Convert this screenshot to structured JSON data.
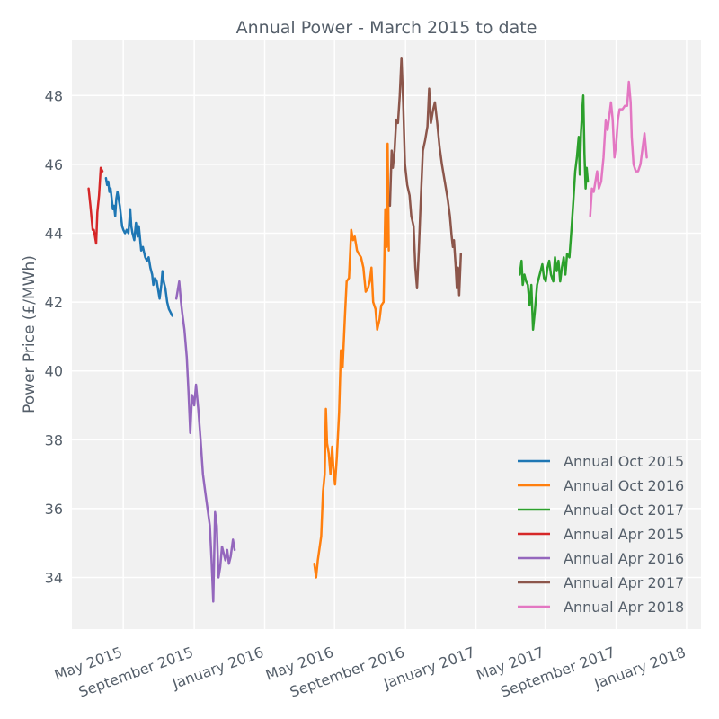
{
  "chart_data": {
    "type": "line",
    "title": "Annual Power - March 2015 to date",
    "xlabel": "",
    "ylabel": "Power Price (£/MWh)",
    "ylim": [
      32.5,
      49.6
    ],
    "xlim": [
      "2015-02-01",
      "2018-01-26"
    ],
    "yticks": [
      34,
      36,
      38,
      40,
      42,
      44,
      46,
      48
    ],
    "xticks": [
      {
        "date": "2015-05-01",
        "label": "May 2015"
      },
      {
        "date": "2015-09-01",
        "label": "September 2015"
      },
      {
        "date": "2016-01-01",
        "label": "January 2016"
      },
      {
        "date": "2016-05-01",
        "label": "May 2016"
      },
      {
        "date": "2016-09-01",
        "label": "September 2016"
      },
      {
        "date": "2017-01-01",
        "label": "January 2017"
      },
      {
        "date": "2017-05-01",
        "label": "May 2017"
      },
      {
        "date": "2017-09-01",
        "label": "September 2017"
      },
      {
        "date": "2018-01-01",
        "label": "January 2018"
      }
    ],
    "grid": true,
    "legend_position": "lower-right",
    "series": [
      {
        "name": "Annual Oct 2015",
        "color": "#1f77b4",
        "points": [
          [
            "2015-04-01",
            45.6
          ],
          [
            "2015-04-03",
            45.4
          ],
          [
            "2015-04-05",
            45.5
          ],
          [
            "2015-04-07",
            45.2
          ],
          [
            "2015-04-09",
            45.3
          ],
          [
            "2015-04-11",
            45.0
          ],
          [
            "2015-04-13",
            44.7
          ],
          [
            "2015-04-15",
            44.8
          ],
          [
            "2015-04-17",
            44.5
          ],
          [
            "2015-04-19",
            45.0
          ],
          [
            "2015-04-21",
            45.2
          ],
          [
            "2015-04-23",
            45.0
          ],
          [
            "2015-04-25",
            44.8
          ],
          [
            "2015-04-27",
            44.5
          ],
          [
            "2015-04-29",
            44.2
          ],
          [
            "2015-05-01",
            44.1
          ],
          [
            "2015-05-04",
            44.0
          ],
          [
            "2015-05-07",
            44.1
          ],
          [
            "2015-05-10",
            44.0
          ],
          [
            "2015-05-13",
            44.7
          ],
          [
            "2015-05-15",
            44.2
          ],
          [
            "2015-05-17",
            44.0
          ],
          [
            "2015-05-20",
            43.8
          ],
          [
            "2015-05-23",
            44.3
          ],
          [
            "2015-05-26",
            43.9
          ],
          [
            "2015-05-28",
            44.2
          ],
          [
            "2015-06-01",
            43.5
          ],
          [
            "2015-06-04",
            43.6
          ],
          [
            "2015-06-08",
            43.3
          ],
          [
            "2015-06-11",
            43.2
          ],
          [
            "2015-06-14",
            43.3
          ],
          [
            "2015-06-17",
            43.0
          ],
          [
            "2015-06-20",
            42.8
          ],
          [
            "2015-06-22",
            42.5
          ],
          [
            "2015-06-25",
            42.7
          ],
          [
            "2015-06-28",
            42.6
          ],
          [
            "2015-07-01",
            42.3
          ],
          [
            "2015-07-03",
            42.1
          ],
          [
            "2015-07-06",
            42.5
          ],
          [
            "2015-07-08",
            42.9
          ],
          [
            "2015-07-10",
            42.6
          ],
          [
            "2015-07-13",
            42.4
          ],
          [
            "2015-07-16",
            42.0
          ],
          [
            "2015-07-19",
            41.8
          ],
          [
            "2015-07-22",
            41.7
          ],
          [
            "2015-07-25",
            41.6
          ]
        ]
      },
      {
        "name": "Annual Oct 2016",
        "color": "#ff7f0e",
        "points": [
          [
            "2016-03-27",
            34.4
          ],
          [
            "2016-03-30",
            34.0
          ],
          [
            "2016-04-02",
            34.5
          ],
          [
            "2016-04-08",
            35.2
          ],
          [
            "2016-04-11",
            36.5
          ],
          [
            "2016-04-14",
            37.0
          ],
          [
            "2016-04-16",
            38.9
          ],
          [
            "2016-04-18",
            37.9
          ],
          [
            "2016-04-21",
            37.6
          ],
          [
            "2016-04-24",
            37.0
          ],
          [
            "2016-04-27",
            37.8
          ],
          [
            "2016-04-29",
            37.2
          ],
          [
            "2016-05-02",
            36.7
          ],
          [
            "2016-05-05",
            37.5
          ],
          [
            "2016-05-09",
            38.8
          ],
          [
            "2016-05-12",
            40.6
          ],
          [
            "2016-05-15",
            40.1
          ],
          [
            "2016-05-19",
            41.6
          ],
          [
            "2016-05-22",
            42.6
          ],
          [
            "2016-05-26",
            42.7
          ],
          [
            "2016-05-30",
            44.1
          ],
          [
            "2016-06-02",
            43.8
          ],
          [
            "2016-06-05",
            43.9
          ],
          [
            "2016-06-09",
            43.5
          ],
          [
            "2016-06-12",
            43.4
          ],
          [
            "2016-06-16",
            43.3
          ],
          [
            "2016-06-20",
            43.0
          ],
          [
            "2016-06-24",
            42.3
          ],
          [
            "2016-06-28",
            42.4
          ],
          [
            "2016-07-01",
            42.6
          ],
          [
            "2016-07-04",
            43.0
          ],
          [
            "2016-07-07",
            42.0
          ],
          [
            "2016-07-11",
            41.8
          ],
          [
            "2016-07-14",
            41.2
          ],
          [
            "2016-07-18",
            41.5
          ],
          [
            "2016-07-21",
            41.9
          ],
          [
            "2016-07-25",
            42.0
          ],
          [
            "2016-07-28",
            44.7
          ],
          [
            "2016-07-30",
            43.6
          ],
          [
            "2016-08-01",
            46.6
          ],
          [
            "2016-08-03",
            43.5
          ]
        ]
      },
      {
        "name": "Annual Oct 2017",
        "color": "#2ca02c",
        "points": [
          [
            "2017-03-18",
            42.8
          ],
          [
            "2017-03-21",
            43.2
          ],
          [
            "2017-03-23",
            42.5
          ],
          [
            "2017-03-26",
            42.8
          ],
          [
            "2017-03-29",
            42.6
          ],
          [
            "2017-04-01",
            42.5
          ],
          [
            "2017-04-04",
            41.9
          ],
          [
            "2017-04-07",
            42.5
          ],
          [
            "2017-04-10",
            41.2
          ],
          [
            "2017-04-13",
            41.7
          ],
          [
            "2017-04-17",
            42.5
          ],
          [
            "2017-04-20",
            42.7
          ],
          [
            "2017-04-23",
            42.9
          ],
          [
            "2017-04-26",
            43.1
          ],
          [
            "2017-04-29",
            42.7
          ],
          [
            "2017-05-02",
            42.6
          ],
          [
            "2017-05-05",
            43.0
          ],
          [
            "2017-05-08",
            43.2
          ],
          [
            "2017-05-11",
            42.8
          ],
          [
            "2017-05-15",
            42.6
          ],
          [
            "2017-05-18",
            43.3
          ],
          [
            "2017-05-21",
            42.9
          ],
          [
            "2017-05-24",
            43.2
          ],
          [
            "2017-05-27",
            42.6
          ],
          [
            "2017-05-30",
            43.0
          ],
          [
            "2017-06-02",
            43.3
          ],
          [
            "2017-06-05",
            42.8
          ],
          [
            "2017-06-08",
            43.4
          ],
          [
            "2017-06-12",
            43.3
          ],
          [
            "2017-06-16",
            44.2
          ],
          [
            "2017-06-19",
            45.0
          ],
          [
            "2017-06-22",
            45.8
          ],
          [
            "2017-06-25",
            46.2
          ],
          [
            "2017-06-28",
            46.8
          ],
          [
            "2017-06-30",
            45.7
          ],
          [
            "2017-07-02",
            46.9
          ],
          [
            "2017-07-04",
            47.5
          ],
          [
            "2017-07-06",
            48.0
          ],
          [
            "2017-07-08",
            46.3
          ],
          [
            "2017-07-10",
            45.3
          ],
          [
            "2017-07-12",
            45.9
          ],
          [
            "2017-07-14",
            45.5
          ]
        ]
      },
      {
        "name": "Annual Apr 2015",
        "color": "#d62728",
        "points": [
          [
            "2015-03-02",
            45.3
          ],
          [
            "2015-03-05",
            44.8
          ],
          [
            "2015-03-09",
            44.1
          ],
          [
            "2015-03-11",
            44.1
          ],
          [
            "2015-03-13",
            43.9
          ],
          [
            "2015-03-15",
            43.7
          ],
          [
            "2015-03-17",
            44.6
          ],
          [
            "2015-03-20",
            45.1
          ],
          [
            "2015-03-23",
            45.9
          ],
          [
            "2015-03-26",
            45.8
          ]
        ]
      },
      {
        "name": "Annual Apr 2016",
        "color": "#9467bd",
        "points": [
          [
            "2015-08-01",
            42.1
          ],
          [
            "2015-08-03",
            42.3
          ],
          [
            "2015-08-06",
            42.6
          ],
          [
            "2015-08-09",
            42.0
          ],
          [
            "2015-08-11",
            41.7
          ],
          [
            "2015-08-15",
            41.2
          ],
          [
            "2015-08-19",
            40.4
          ],
          [
            "2015-08-22",
            39.4
          ],
          [
            "2015-08-25",
            38.2
          ],
          [
            "2015-08-28",
            39.3
          ],
          [
            "2015-08-30",
            39.2
          ],
          [
            "2015-09-01",
            39.0
          ],
          [
            "2015-09-04",
            39.6
          ],
          [
            "2015-09-08",
            38.9
          ],
          [
            "2015-09-12",
            38.0
          ],
          [
            "2015-09-16",
            37.0
          ],
          [
            "2015-09-20",
            36.5
          ],
          [
            "2015-09-24",
            36.0
          ],
          [
            "2015-09-28",
            35.5
          ],
          [
            "2015-10-01",
            34.5
          ],
          [
            "2015-10-04",
            33.3
          ],
          [
            "2015-10-07",
            35.9
          ],
          [
            "2015-10-10",
            35.5
          ],
          [
            "2015-10-13",
            34.0
          ],
          [
            "2015-10-16",
            34.3
          ],
          [
            "2015-10-19",
            34.9
          ],
          [
            "2015-10-22",
            34.7
          ],
          [
            "2015-10-25",
            34.5
          ],
          [
            "2015-10-28",
            34.8
          ],
          [
            "2015-10-31",
            34.4
          ],
          [
            "2015-11-03",
            34.6
          ],
          [
            "2015-11-07",
            35.1
          ],
          [
            "2015-11-10",
            34.8
          ]
        ]
      },
      {
        "name": "Annual Apr 2017",
        "color": "#8c564b",
        "points": [
          [
            "2016-08-05",
            44.8
          ],
          [
            "2016-08-08",
            46.4
          ],
          [
            "2016-08-10",
            45.9
          ],
          [
            "2016-08-13",
            46.4
          ],
          [
            "2016-08-16",
            47.3
          ],
          [
            "2016-08-19",
            47.2
          ],
          [
            "2016-08-22",
            48.0
          ],
          [
            "2016-08-25",
            49.1
          ],
          [
            "2016-08-28",
            47.8
          ],
          [
            "2016-08-31",
            46.0
          ],
          [
            "2016-09-04",
            45.4
          ],
          [
            "2016-09-08",
            45.1
          ],
          [
            "2016-09-11",
            44.5
          ],
          [
            "2016-09-15",
            44.2
          ],
          [
            "2016-09-18",
            43.0
          ],
          [
            "2016-09-21",
            42.4
          ],
          [
            "2016-09-24",
            43.5
          ],
          [
            "2016-09-27",
            44.8
          ],
          [
            "2016-10-01",
            46.4
          ],
          [
            "2016-10-05",
            46.7
          ],
          [
            "2016-10-09",
            47.1
          ],
          [
            "2016-10-12",
            48.2
          ],
          [
            "2016-10-15",
            47.2
          ],
          [
            "2016-10-19",
            47.6
          ],
          [
            "2016-10-22",
            47.8
          ],
          [
            "2016-10-26",
            47.2
          ],
          [
            "2016-10-30",
            46.5
          ],
          [
            "2016-11-03",
            46.0
          ],
          [
            "2016-11-08",
            45.5
          ],
          [
            "2016-11-13",
            45.0
          ],
          [
            "2016-11-17",
            44.5
          ],
          [
            "2016-11-20",
            43.9
          ],
          [
            "2016-11-22",
            43.6
          ],
          [
            "2016-11-24",
            43.8
          ],
          [
            "2016-11-27",
            43.0
          ],
          [
            "2016-11-29",
            42.4
          ],
          [
            "2016-12-01",
            43.0
          ],
          [
            "2016-12-03",
            42.2
          ],
          [
            "2016-12-06",
            43.4
          ]
        ]
      },
      {
        "name": "Annual Apr 2018",
        "color": "#e377c2",
        "points": [
          [
            "2017-07-18",
            44.5
          ],
          [
            "2017-07-21",
            45.3
          ],
          [
            "2017-07-24",
            45.2
          ],
          [
            "2017-07-27",
            45.5
          ],
          [
            "2017-07-30",
            45.8
          ],
          [
            "2017-08-02",
            45.3
          ],
          [
            "2017-08-06",
            45.5
          ],
          [
            "2017-08-10",
            46.2
          ],
          [
            "2017-08-14",
            47.3
          ],
          [
            "2017-08-17",
            47.0
          ],
          [
            "2017-08-20",
            47.4
          ],
          [
            "2017-08-23",
            47.8
          ],
          [
            "2017-08-26",
            47.3
          ],
          [
            "2017-08-29",
            46.2
          ],
          [
            "2017-09-01",
            46.6
          ],
          [
            "2017-09-04",
            47.3
          ],
          [
            "2017-09-07",
            47.6
          ],
          [
            "2017-09-12",
            47.6
          ],
          [
            "2017-09-16",
            47.7
          ],
          [
            "2017-09-20",
            47.7
          ],
          [
            "2017-09-23",
            48.4
          ],
          [
            "2017-09-26",
            47.8
          ],
          [
            "2017-09-28",
            46.8
          ],
          [
            "2017-10-01",
            46.0
          ],
          [
            "2017-10-05",
            45.8
          ],
          [
            "2017-10-09",
            45.8
          ],
          [
            "2017-10-13",
            46.0
          ],
          [
            "2017-10-17",
            46.5
          ],
          [
            "2017-10-20",
            46.9
          ],
          [
            "2017-10-24",
            46.2
          ]
        ]
      }
    ]
  }
}
